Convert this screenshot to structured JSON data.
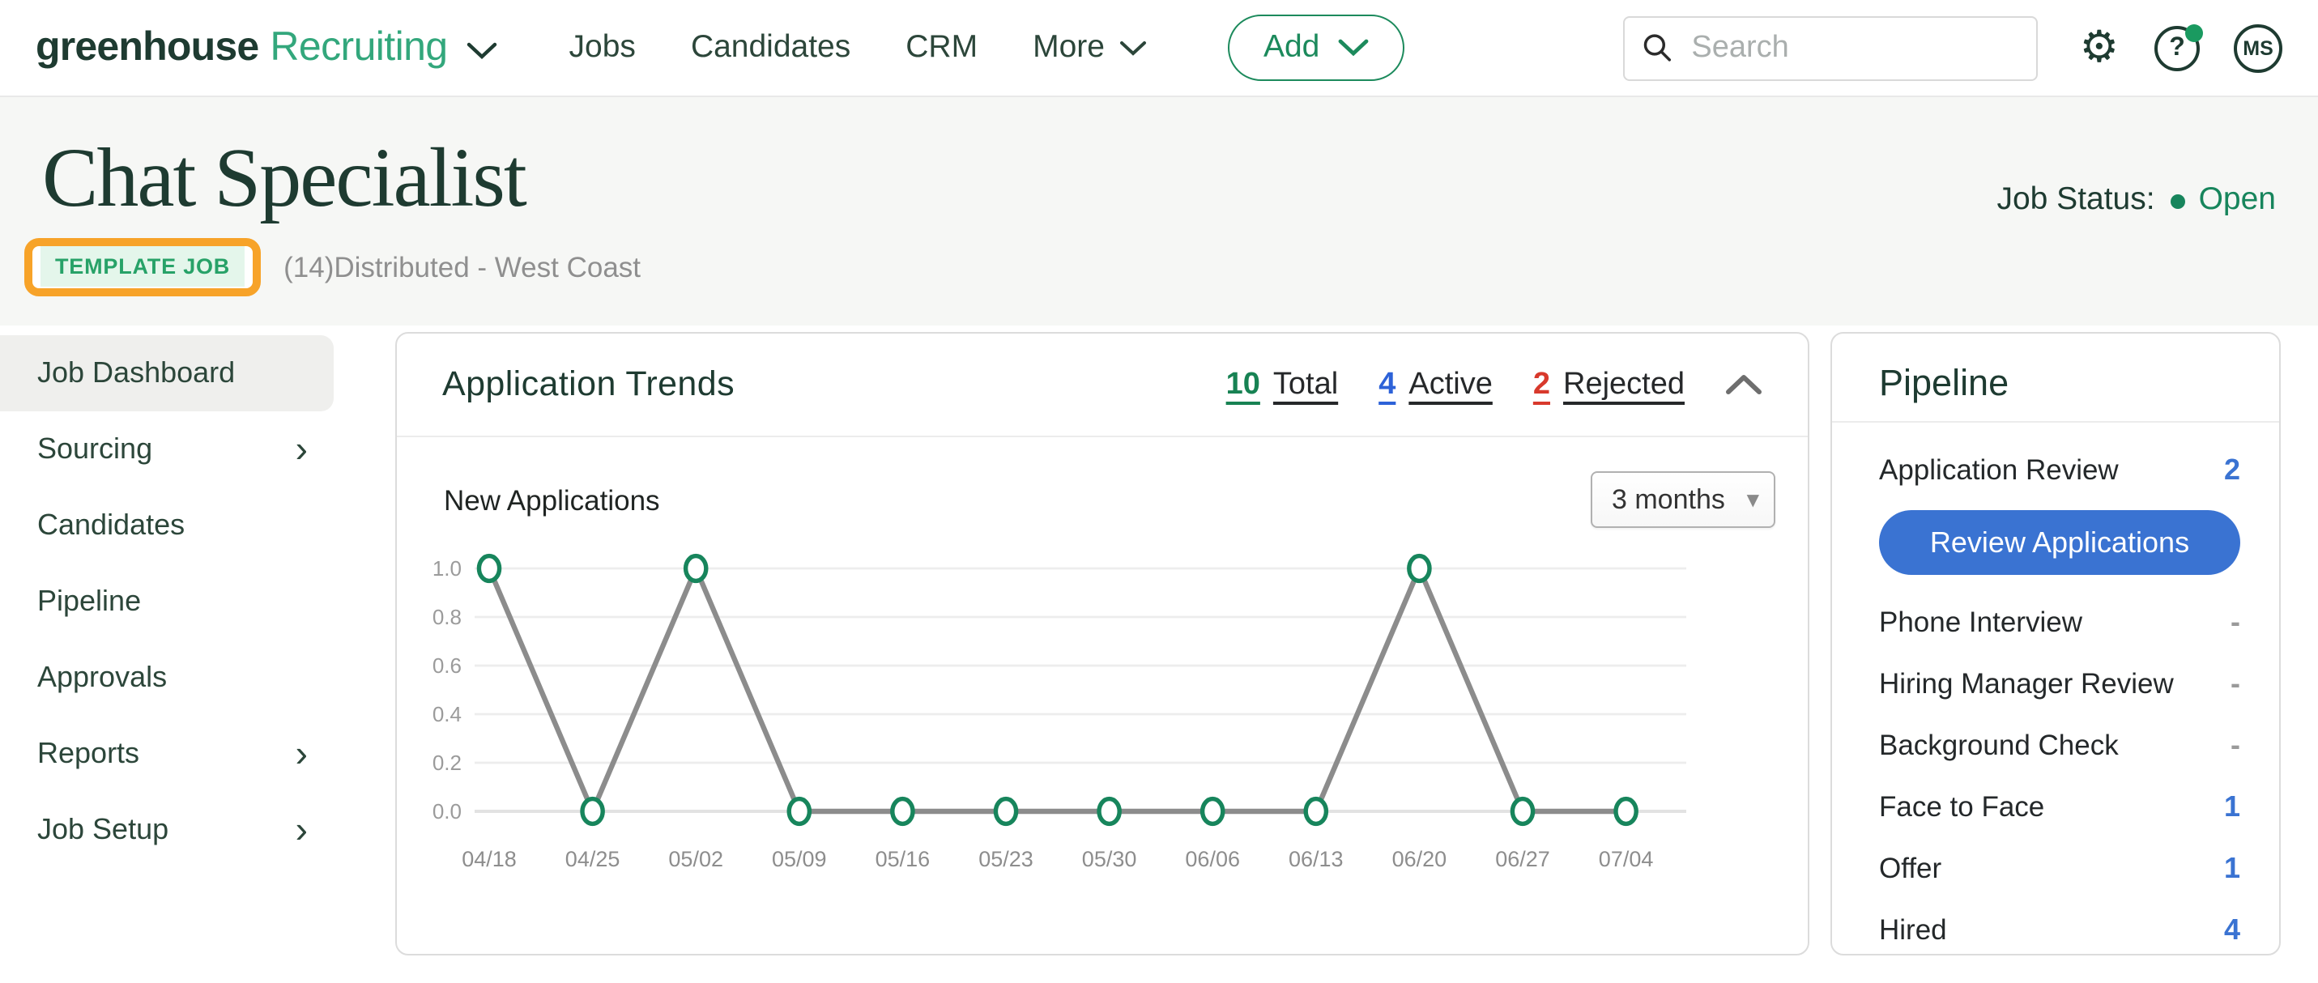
{
  "nav": {
    "brand": {
      "name": "greenhouse",
      "product": "Recruiting"
    },
    "links": [
      "Jobs",
      "Candidates",
      "CRM"
    ],
    "more_label": "More",
    "add_label": "Add",
    "search_placeholder": "Search",
    "avatar_initials": "MS"
  },
  "header": {
    "title": "Chat Specialist",
    "badge": "TEMPLATE JOB",
    "subtitle": "(14)Distributed - West Coast",
    "job_status_label": "Job Status:",
    "job_status_value": "Open"
  },
  "sidebar": {
    "items": [
      {
        "label": "Job Dashboard",
        "active": true,
        "has_children": false
      },
      {
        "label": "Sourcing",
        "active": false,
        "has_children": true
      },
      {
        "label": "Candidates",
        "active": false,
        "has_children": false
      },
      {
        "label": "Pipeline",
        "active": false,
        "has_children": false
      },
      {
        "label": "Approvals",
        "active": false,
        "has_children": false
      },
      {
        "label": "Reports",
        "active": false,
        "has_children": true
      },
      {
        "label": "Job Setup",
        "active": false,
        "has_children": true
      }
    ]
  },
  "trends": {
    "title": "Application Trends",
    "stats": [
      {
        "value": "10",
        "label": "Total",
        "color": "#178253"
      },
      {
        "value": "4",
        "label": "Active",
        "color": "#2d62d8"
      },
      {
        "value": "2",
        "label": "Rejected",
        "color": "#d8392c"
      }
    ],
    "chart_label": "New Applications",
    "range_selector": "3 months"
  },
  "chart_data": {
    "type": "line",
    "title": "New Applications",
    "x": [
      "04/18",
      "04/25",
      "05/02",
      "05/09",
      "05/16",
      "05/23",
      "05/30",
      "06/06",
      "06/13",
      "06/20",
      "06/27",
      "07/04"
    ],
    "values": [
      1.0,
      0.0,
      1.0,
      0.0,
      0.0,
      0.0,
      0.0,
      0.0,
      0.0,
      1.0,
      0.0,
      0.0
    ],
    "yticks": [
      0.0,
      0.2,
      0.4,
      0.6,
      0.8,
      1.0
    ],
    "ylim": [
      0,
      1
    ],
    "grid": true,
    "legend": "none",
    "line_color": "#8c8c8c",
    "marker_stroke": "#17855c",
    "marker_fill": "#ffffff",
    "gridline_color": "#ededed",
    "baseline_color": "#e2e2e2",
    "tick_color": "#9b9b9b",
    "xlabel_color": "#8d8d8d"
  },
  "pipeline": {
    "title": "Pipeline",
    "review_button": "Review Applications",
    "accent_color": "#3a73d2",
    "stages": [
      {
        "name": "Application Review",
        "count": "2"
      },
      {
        "name": "Phone Interview",
        "count": "-"
      },
      {
        "name": "Hiring Manager Review",
        "count": "-"
      },
      {
        "name": "Background Check",
        "count": "-"
      },
      {
        "name": "Face to Face",
        "count": "1"
      },
      {
        "name": "Offer",
        "count": "1"
      },
      {
        "name": "Hired",
        "count": "4"
      }
    ]
  },
  "colors": {
    "brand_dark_green": "#1e3b31",
    "brand_green": "#33a77c",
    "status_green": "#17855c",
    "badge_green": "#27a268",
    "badge_bg": "#e4f6eb",
    "annotation_orange": "#f7a329",
    "accent_blue": "#3a73d2",
    "rejected_red": "#d8392c",
    "header_band_bg": "#f6f7f5"
  }
}
